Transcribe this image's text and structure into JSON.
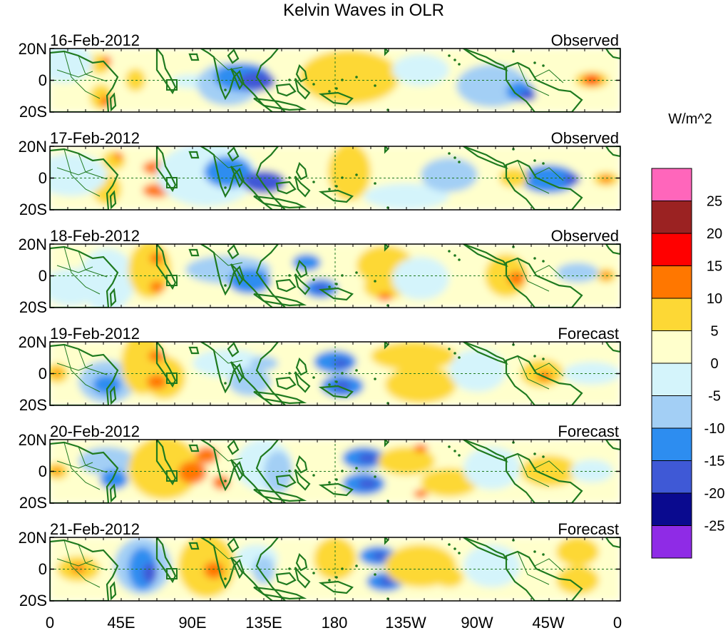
{
  "title": "Kelvin Waves in OLR",
  "units_label": "W/m^2",
  "lat_labels": [
    "20N",
    "0",
    "20S"
  ],
  "lon_labels": [
    "0",
    "45E",
    "90E",
    "135E",
    "180",
    "135W",
    "90W",
    "45W",
    "0"
  ],
  "panels": [
    {
      "date": "16-Feb-2012",
      "status": "Observed"
    },
    {
      "date": "17-Feb-2012",
      "status": "Observed"
    },
    {
      "date": "18-Feb-2012",
      "status": "Observed"
    },
    {
      "date": "19-Feb-2012",
      "status": "Forecast"
    },
    {
      "date": "20-Feb-2012",
      "status": "Forecast"
    },
    {
      "date": "21-Feb-2012",
      "status": "Forecast"
    }
  ],
  "colorbar": {
    "tick_labels": [
      "25",
      "20",
      "15",
      "10",
      "5",
      "0",
      "-5",
      "-10",
      "-15",
      "-20",
      "-25"
    ],
    "colors": [
      "#ff66bb",
      "#9b2222",
      "#ff0000",
      "#ff7700",
      "#fdd835",
      "#ffffcc",
      "#d4f4fb",
      "#a3cff5",
      "#2d8df0",
      "#3f59d6",
      "#0a0a8f",
      "#8f2be6"
    ]
  },
  "colors": {
    "land": "#1f7a1f",
    "frame": "#000000",
    "equator_line": "#1f7a1f"
  }
}
